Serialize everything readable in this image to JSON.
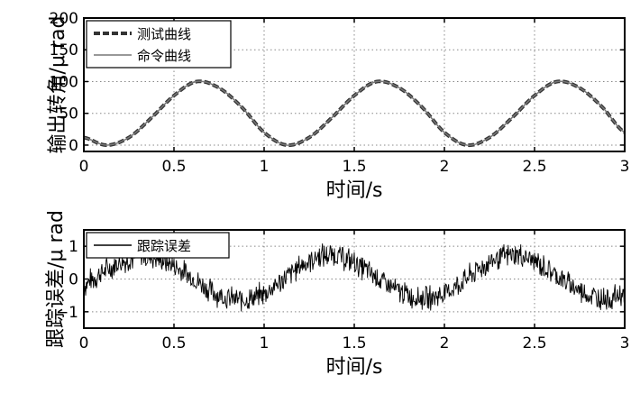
{
  "chart_data": [
    {
      "type": "line",
      "xlabel": "时间/s",
      "ylabel": "输出转角/μ rad",
      "xlim": [
        0,
        3
      ],
      "ylim": [
        -10,
        200
      ],
      "xticks": [
        0,
        0.5,
        1,
        1.5,
        2,
        2.5,
        3
      ],
      "xticklabels": [
        "0",
        "0.5",
        "1",
        "1.5",
        "2",
        "2.5",
        "3"
      ],
      "yticks": [
        0,
        50,
        100,
        150,
        200
      ],
      "yticklabels": [
        "0",
        "50",
        "100",
        "150",
        "200"
      ],
      "grid": true,
      "legend": "top-left",
      "series": [
        {
          "name": "测试曲线",
          "style": "dashed",
          "color": "#333333",
          "x": [
            0,
            0.125,
            0.25,
            0.375,
            0.5,
            0.625,
            0.75,
            0.875,
            1,
            1.125,
            1.25,
            1.375,
            1.5,
            1.625,
            1.75,
            1.875,
            2,
            2.125,
            2.25,
            2.375,
            2.5,
            2.625,
            2.75,
            2.875,
            3
          ],
          "y": [
            12,
            0,
            12,
            43,
            78,
            100,
            90,
            60,
            20,
            0,
            12,
            43,
            78,
            100,
            90,
            60,
            20,
            0,
            12,
            43,
            78,
            100,
            90,
            60,
            20
          ]
        },
        {
          "name": "命令曲线",
          "style": "solid",
          "color": "#777777",
          "x": [
            0,
            0.125,
            0.25,
            0.375,
            0.5,
            0.625,
            0.75,
            0.875,
            1,
            1.125,
            1.25,
            1.375,
            1.5,
            1.625,
            1.75,
            1.875,
            2,
            2.125,
            2.25,
            2.375,
            2.5,
            2.625,
            2.75,
            2.875,
            3
          ],
          "y": [
            12,
            0,
            12,
            43,
            78,
            100,
            90,
            60,
            20,
            0,
            12,
            43,
            78,
            100,
            90,
            60,
            20,
            0,
            12,
            43,
            78,
            100,
            90,
            60,
            20
          ]
        }
      ]
    },
    {
      "type": "line",
      "xlabel": "时间/s",
      "ylabel": "跟踪误差/μ rad",
      "xlim": [
        0,
        3
      ],
      "ylim": [
        -1.5,
        1.5
      ],
      "xticks": [
        0,
        0.5,
        1,
        1.5,
        2,
        2.5,
        3
      ],
      "xticklabels": [
        "0",
        "0.5",
        "1",
        "1.5",
        "2",
        "2.5",
        "3"
      ],
      "yticks": [
        -1,
        0,
        1
      ],
      "yticklabels": [
        "−1",
        "0",
        "1"
      ],
      "grid": true,
      "legend": "top-left",
      "series": [
        {
          "name": "跟踪误差",
          "style": "solid",
          "color": "#000000",
          "x": [
            0,
            0.1,
            0.2,
            0.3,
            0.4,
            0.5,
            0.6,
            0.7,
            0.8,
            0.9,
            1,
            1.1,
            1.2,
            1.3,
            1.4,
            1.5,
            1.6,
            1.7,
            1.8,
            1.9,
            2,
            2.1,
            2.2,
            2.3,
            2.4,
            2.5,
            2.6,
            2.7,
            2.8,
            2.9,
            3
          ],
          "y": [
            -0.2,
            0.2,
            0.5,
            0.7,
            0.65,
            0.4,
            0.05,
            -0.35,
            -0.6,
            -0.65,
            -0.45,
            -0.05,
            0.4,
            0.7,
            0.75,
            0.5,
            0.15,
            -0.25,
            -0.5,
            -0.6,
            -0.45,
            -0.1,
            0.35,
            0.65,
            0.75,
            0.55,
            0.2,
            -0.2,
            -0.5,
            -0.6,
            -0.45
          ],
          "noise_amplitude": 0.4
        }
      ]
    }
  ]
}
